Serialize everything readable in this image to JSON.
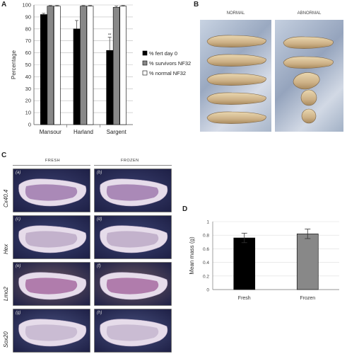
{
  "panels": {
    "a": "A",
    "b": "B",
    "c": "C",
    "d": "D"
  },
  "chart_data": [
    {
      "type": "bar",
      "categories": [
        "Mansour",
        "Harland",
        "Sargent"
      ],
      "series": [
        {
          "name": "% fert day 0",
          "values": [
            92,
            80,
            62
          ],
          "errors": [
            1,
            7,
            11
          ]
        },
        {
          "name": "% survivors NF32",
          "values": [
            99,
            99,
            98
          ],
          "errors": [
            0.5,
            0.5,
            1
          ]
        },
        {
          "name": "% normal NF32",
          "values": [
            99,
            99,
            99
          ],
          "errors": [
            0.5,
            0.5,
            0.5
          ]
        }
      ],
      "title": "",
      "xlabel": "",
      "ylabel": "Percentage",
      "ylim": [
        0,
        100
      ],
      "yticks": [
        0,
        10,
        20,
        30,
        40,
        50,
        60,
        70,
        80,
        90,
        100
      ],
      "grid": true,
      "legend": "right",
      "annotations": [
        {
          "category": "Sargent",
          "text": "**"
        }
      ],
      "colors": [
        "#000000",
        "#888888",
        "#ffffff"
      ]
    },
    {
      "type": "bar",
      "categories": [
        "Fresh",
        "Frozen"
      ],
      "values": [
        0.76,
        0.82
      ],
      "errors": [
        0.07,
        0.07
      ],
      "title": "",
      "xlabel": "",
      "ylabel": "Mean mass (g)",
      "ylim": [
        0,
        1
      ],
      "yticks": [
        "0",
        "0.2",
        "0.4",
        "0.6",
        "0.8",
        "1"
      ],
      "grid": true,
      "colors": [
        "#000000",
        "#888888"
      ]
    }
  ],
  "panel_b": {
    "normal_label": "NORMAL",
    "abnormal_label": "ABNORMAL"
  },
  "panel_c": {
    "fresh_label": "FRESH",
    "frozen_label": "FROZEN",
    "genes": [
      "Cx40.4",
      "Hex",
      "Lmo2",
      "Sox20"
    ],
    "fresh_tags": [
      "(a)",
      "(c)",
      "(e)",
      "(g)"
    ],
    "frozen_tags": [
      "(b)",
      "(d)",
      "(f)",
      "(h)"
    ]
  }
}
